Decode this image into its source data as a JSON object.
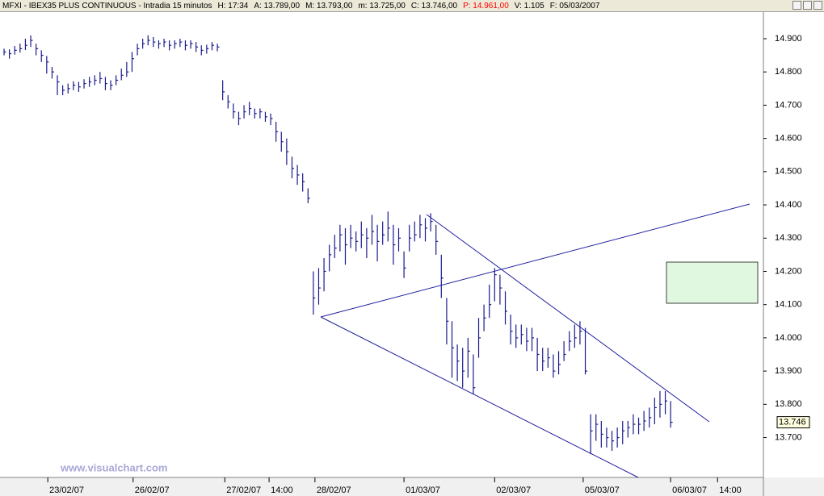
{
  "header": {
    "items": [
      {
        "text": "MFXI - IBEX35 PLUS CONTINUOUS - Intradia 15 minutos",
        "color": "#000000"
      },
      {
        "text": "H: 17:34",
        "color": "#000000"
      },
      {
        "text": "A: 13.789,00",
        "color": "#000000"
      },
      {
        "text": "M: 13.793,00",
        "color": "#000000"
      },
      {
        "text": "m: 13.725,00",
        "color": "#000000"
      },
      {
        "text": "C: 13.746,00",
        "color": "#000000"
      },
      {
        "text": "P: 14.961,00",
        "color": "#ff0000"
      },
      {
        "text": "V: 1.105",
        "color": "#000000"
      },
      {
        "text": "F: 05/03/2007",
        "color": "#000000"
      }
    ]
  },
  "chart_data": {
    "type": "ohlc",
    "color": "#1a1a8c",
    "watermark": "www.visualchart.com",
    "ylim": [
      13580,
      14980
    ],
    "xlim": [
      -0.76,
      142.4
    ],
    "yticks": [
      {
        "value": 14900,
        "label": "14.900"
      },
      {
        "value": 14800,
        "label": "14.800"
      },
      {
        "value": 14700,
        "label": "14.700"
      },
      {
        "value": 14600,
        "label": "14.600"
      },
      {
        "value": 14500,
        "label": "14.500"
      },
      {
        "value": 14400,
        "label": "14.400"
      },
      {
        "value": 14300,
        "label": "14.300"
      },
      {
        "value": 14200,
        "label": "14.200"
      },
      {
        "value": 14100,
        "label": "14.100"
      },
      {
        "value": 14000,
        "label": "14.000"
      },
      {
        "value": 13900,
        "label": "13.900"
      },
      {
        "value": 13800,
        "label": "13.800"
      },
      {
        "value": 13700,
        "label": "13.700"
      }
    ],
    "xticks": [
      {
        "value": 8.2,
        "label": "23/02/07"
      },
      {
        "value": 24.2,
        "label": "26/02/07"
      },
      {
        "value": 41.4,
        "label": "27/02/07"
      },
      {
        "value": 49.7,
        "label": "14:00"
      },
      {
        "value": 58.3,
        "label": "28/02/07"
      },
      {
        "value": 75,
        "label": "01/03/07"
      },
      {
        "value": 92,
        "label": "02/03/07"
      },
      {
        "value": 108.6,
        "label": "05/03/07"
      },
      {
        "value": 125,
        "label": "06/03/07"
      },
      {
        "value": 133.8,
        "label": "14:00"
      }
    ],
    "last_price": {
      "value": 13746,
      "label": "13.746"
    },
    "close": [
      14860,
      14855,
      14865,
      14870,
      14880,
      14895,
      14870,
      14850,
      14830,
      14800,
      14770,
      14745,
      14750,
      14760,
      14755,
      14765,
      14770,
      14775,
      14780,
      14765,
      14760,
      14775,
      14790,
      14800,
      14840,
      14870,
      14885,
      14895,
      14890,
      14885,
      14890,
      14880,
      14885,
      14890,
      14880,
      14885,
      14875,
      14865,
      14870,
      14880,
      14875,
      14740,
      14710,
      14680,
      14660,
      14680,
      14690,
      14675,
      14680,
      14665,
      14660,
      14620,
      14590,
      14560,
      14510,
      14490,
      14470,
      14420,
      14120,
      14150,
      14200,
      14250,
      14270,
      14310,
      14280,
      14300,
      14290,
      14310,
      14300,
      14320,
      14290,
      14310,
      14330,
      14280,
      14300,
      14210,
      14300,
      14310,
      14340,
      14330,
      14350,
      14290,
      14180,
      14050,
      13970,
      13930,
      13900,
      13960,
      13850,
      14000,
      14060,
      14100,
      14190,
      14150,
      14080,
      14020,
      14000,
      14010,
      13990,
      14000,
      13950,
      13930,
      13940,
      13900,
      13920,
      13950,
      13990,
      14000,
      14020,
      13900,
      13720,
      13740,
      13710,
      13700,
      13690,
      13700,
      13720,
      13730,
      13740,
      13740,
      13750,
      13760,
      13790,
      13800,
      13810,
      13746
    ],
    "high": [
      14870,
      14868,
      14878,
      14885,
      14900,
      14910,
      14885,
      14865,
      14848,
      14815,
      14790,
      14760,
      14765,
      14772,
      14770,
      14778,
      14785,
      14790,
      14800,
      14785,
      14775,
      14790,
      14810,
      14830,
      14860,
      14885,
      14900,
      14910,
      14905,
      14895,
      14900,
      14895,
      14895,
      14900,
      14895,
      14895,
      14890,
      14880,
      14882,
      14890,
      14885,
      14775,
      14730,
      14705,
      14680,
      14700,
      14710,
      14690,
      14690,
      14680,
      14675,
      14650,
      14620,
      14600,
      14545,
      14520,
      14495,
      14450,
      14200,
      14210,
      14240,
      14280,
      14310,
      14340,
      14330,
      14340,
      14320,
      14350,
      14330,
      14370,
      14340,
      14350,
      14380,
      14340,
      14330,
      14260,
      14340,
      14350,
      14370,
      14360,
      14375,
      14340,
      14250,
      14120,
      14050,
      13980,
      13970,
      14000,
      13950,
      14060,
      14100,
      14160,
      14210,
      14190,
      14140,
      14070,
      14040,
      14040,
      14030,
      14030,
      14000,
      13970,
      13970,
      13950,
      13960,
      13990,
      14020,
      14040,
      14050,
      14030,
      13770,
      13770,
      13750,
      13730,
      13720,
      13730,
      13750,
      13750,
      13770,
      13760,
      13780,
      13790,
      13820,
      13840,
      13840,
      13810
    ],
    "low": [
      14850,
      14840,
      14852,
      14858,
      14866,
      14875,
      14850,
      14830,
      14795,
      14780,
      14730,
      14730,
      14735,
      14745,
      14740,
      14750,
      14755,
      14760,
      14765,
      14745,
      14745,
      14760,
      14775,
      14785,
      14800,
      14850,
      14870,
      14880,
      14875,
      14870,
      14875,
      14865,
      14870,
      14875,
      14865,
      14870,
      14860,
      14850,
      14855,
      14865,
      14862,
      14715,
      14690,
      14660,
      14640,
      14660,
      14670,
      14660,
      14660,
      14650,
      14640,
      14590,
      14560,
      14520,
      14480,
      14460,
      14440,
      14405,
      14070,
      14100,
      14140,
      14200,
      14240,
      14260,
      14220,
      14270,
      14260,
      14270,
      14240,
      14280,
      14230,
      14280,
      14290,
      14220,
      14260,
      14180,
      14260,
      14290,
      14300,
      14290,
      14320,
      14250,
      14120,
      13980,
      13880,
      13870,
      13850,
      13880,
      13830,
      13940,
      14020,
      14060,
      14110,
      14100,
      14040,
      13980,
      13970,
      13980,
      13960,
      13960,
      13900,
      13900,
      13910,
      13880,
      13890,
      13930,
      13960,
      13970,
      13980,
      13890,
      13650,
      13690,
      13670,
      13670,
      13660,
      13670,
      13680,
      13700,
      13710,
      13710,
      13720,
      13730,
      13740,
      13760,
      13770,
      13730
    ]
  }
}
